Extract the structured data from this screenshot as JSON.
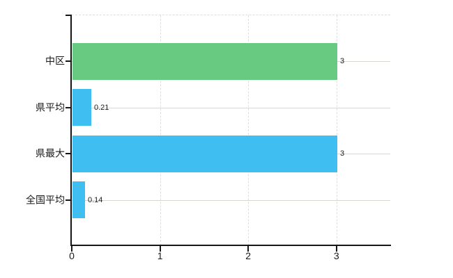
{
  "chart_data": {
    "type": "bar",
    "orientation": "horizontal",
    "title": "",
    "xlabel": "",
    "ylabel": "",
    "categories": [
      "中区",
      "県平均",
      "県最大",
      "全国平均"
    ],
    "values": [
      3,
      0.21,
      3,
      0.14
    ],
    "value_labels": [
      "3",
      "0.21",
      "3",
      "0.14"
    ],
    "series": [
      {
        "name": "中区",
        "value": 3,
        "color": "#68ca80"
      },
      {
        "name": "県平均",
        "value": 0.21,
        "color": "#3fbff1"
      },
      {
        "name": "県最大",
        "value": 3,
        "color": "#3fbff1"
      },
      {
        "name": "全国平均",
        "value": 0.14,
        "color": "#3fbff1"
      }
    ],
    "bar_colors": [
      "#68ca80",
      "#3fbff1",
      "#3fbff1",
      "#3fbff1"
    ],
    "x_ticks": [
      0,
      1,
      2,
      3
    ],
    "x_tick_labels": [
      "0",
      "1",
      "2",
      "3"
    ],
    "xlim": [
      0,
      3.6
    ],
    "grid": true,
    "legend": false
  },
  "colors": {
    "background": "#ffffff",
    "bar_green": "#68ca80",
    "bar_blue": "#3fbff1",
    "axis": "#151515",
    "grid_solid": "#d3d9d1",
    "grid_dashed": "#dedede",
    "text": "#1a1a1a"
  }
}
